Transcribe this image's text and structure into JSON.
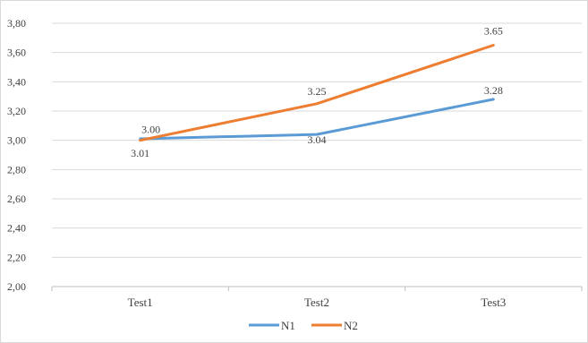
{
  "chart_data": {
    "type": "line",
    "title": "",
    "xlabel": "",
    "ylabel": "",
    "categories": [
      "Test1",
      "Test2",
      "Test3"
    ],
    "ylim": [
      2.0,
      3.8
    ],
    "y_ticks": [
      2.0,
      2.2,
      2.4,
      2.6,
      2.8,
      3.0,
      3.2,
      3.4,
      3.6,
      3.8
    ],
    "y_tick_labels": [
      "2,00",
      "2,20",
      "2,40",
      "2,60",
      "2,80",
      "3,00",
      "3,20",
      "3,40",
      "3,60",
      "3,80"
    ],
    "grid": true,
    "legend_position": "bottom",
    "series": [
      {
        "name": "N1",
        "color": "#5b9bd5",
        "values": [
          3.01,
          3.04,
          3.28
        ],
        "data_labels": [
          "3.01",
          "3.04",
          "3.28"
        ]
      },
      {
        "name": "N2",
        "color": "#ed7d31",
        "values": [
          3.0,
          3.25,
          3.65
        ],
        "data_labels": [
          "3.00",
          "3.25",
          "3.65"
        ]
      }
    ]
  }
}
